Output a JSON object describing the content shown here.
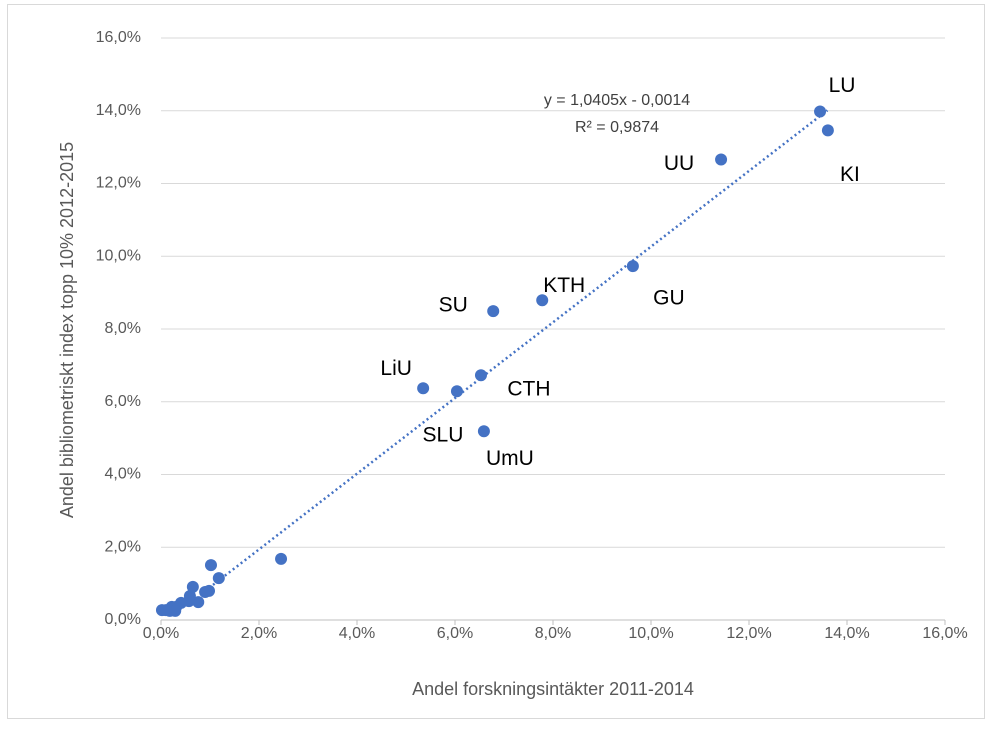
{
  "chart_data": {
    "type": "scatter",
    "x_label": "Andel forskningsintäkter 2011-2014",
    "y_label": "Andel bibliometriskt index topp 10% 2012-2015",
    "xlim": [
      0,
      16
    ],
    "ylim": [
      0,
      16
    ],
    "xticks": [
      {
        "value": 0,
        "label": "0,0%"
      },
      {
        "value": 2,
        "label": "2,0%"
      },
      {
        "value": 4,
        "label": "4,0%"
      },
      {
        "value": 6,
        "label": "6,0%"
      },
      {
        "value": 8,
        "label": "8,0%"
      },
      {
        "value": 10,
        "label": "10,0%"
      },
      {
        "value": 12,
        "label": "12,0%"
      },
      {
        "value": 14,
        "label": "14,0%"
      },
      {
        "value": 16,
        "label": "16,0%"
      }
    ],
    "yticks": [
      {
        "value": 0,
        "label": "0,0%"
      },
      {
        "value": 2,
        "label": "2,0%"
      },
      {
        "value": 4,
        "label": "4,0%"
      },
      {
        "value": 6,
        "label": "6,0%"
      },
      {
        "value": 8,
        "label": "8,0%"
      },
      {
        "value": 10,
        "label": "10,0%"
      },
      {
        "value": 12,
        "label": "12,0%"
      },
      {
        "value": 14,
        "label": "14,0%"
      },
      {
        "value": 16,
        "label": "16,0%"
      }
    ],
    "grid": true,
    "color": "#4472c4",
    "x": [
      13.45,
      13.61,
      11.43,
      9.63,
      7.78,
      6.78,
      6.53,
      5.35,
      6.04,
      6.59,
      2.45,
      1.02,
      1.18,
      0.65,
      0.98,
      0.9,
      0.76,
      0.57,
      0.59,
      0.41,
      0.31,
      0.22,
      0.18,
      0.29,
      0.02,
      0.1
    ],
    "values": [
      13.98,
      13.46,
      12.66,
      9.73,
      8.79,
      8.49,
      6.73,
      6.37,
      6.29,
      5.19,
      1.68,
      1.51,
      1.15,
      0.91,
      0.8,
      0.77,
      0.49,
      0.52,
      0.66,
      0.47,
      0.36,
      0.36,
      0.25,
      0.25,
      0.27,
      0.27
    ],
    "point_labels": [
      "LU",
      "KI",
      "UU",
      "GU",
      "KTH",
      "SU",
      "CTH",
      "LiU",
      "SLU",
      "UmU",
      null,
      null,
      null,
      null,
      null,
      null,
      null,
      null,
      null,
      null,
      null,
      null,
      null,
      null,
      null,
      null
    ],
    "trendline": {
      "equation": "y = 1,0405x - 0,0014",
      "r_squared": "R² = 0,9874",
      "slope": 1.0405,
      "intercept": -0.14,
      "x_range": [
        0.9,
        13.6
      ]
    }
  }
}
